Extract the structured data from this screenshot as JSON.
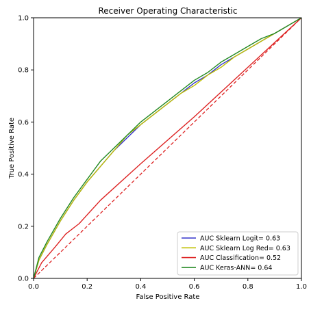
{
  "chart_data": {
    "type": "line",
    "title": "Receiver Operating Characteristic",
    "xlabel": "False Positive Rate",
    "ylabel": "True Positive Rate",
    "xlim": [
      0.0,
      1.0
    ],
    "ylim": [
      0.0,
      1.0
    ],
    "xticks": [
      "0.0",
      "0.2",
      "0.4",
      "0.6",
      "0.8",
      "1.0"
    ],
    "yticks": [
      "0.0",
      "0.2",
      "0.4",
      "0.6",
      "0.8",
      "1.0"
    ],
    "grid": false,
    "legend_position": "lower-right",
    "series": [
      {
        "name": "AUC Sklearn Logit= 0.63",
        "color": "#3333cc",
        "style": "solid",
        "x": [
          0.0,
          0.02,
          0.05,
          0.1,
          0.15,
          0.2,
          0.25,
          0.3,
          0.35,
          0.4,
          0.45,
          0.5,
          0.55,
          0.6,
          0.65,
          0.7,
          0.75,
          0.8,
          0.85,
          0.9,
          0.95,
          1.0
        ],
        "y": [
          0.0,
          0.07,
          0.13,
          0.22,
          0.3,
          0.37,
          0.43,
          0.49,
          0.54,
          0.59,
          0.63,
          0.67,
          0.71,
          0.75,
          0.78,
          0.82,
          0.85,
          0.88,
          0.91,
          0.94,
          0.97,
          1.0
        ]
      },
      {
        "name": "AUC Sklearn Log Red= 0.63",
        "color": "#bfbf00",
        "style": "solid",
        "x": [
          0.0,
          0.02,
          0.05,
          0.1,
          0.15,
          0.2,
          0.25,
          0.3,
          0.35,
          0.4,
          0.45,
          0.5,
          0.55,
          0.6,
          0.65,
          0.7,
          0.75,
          0.8,
          0.85,
          0.9,
          0.95,
          1.0
        ],
        "y": [
          0.0,
          0.07,
          0.13,
          0.22,
          0.3,
          0.37,
          0.43,
          0.49,
          0.55,
          0.59,
          0.63,
          0.67,
          0.71,
          0.74,
          0.78,
          0.81,
          0.85,
          0.88,
          0.91,
          0.94,
          0.97,
          1.0
        ]
      },
      {
        "name": "AUC Classification= 0.52",
        "color": "#dd2222",
        "style": "solid",
        "x": [
          0.0,
          0.03,
          0.08,
          0.12,
          0.17,
          0.25,
          0.4,
          0.6,
          0.8,
          1.0
        ],
        "y": [
          0.0,
          0.06,
          0.12,
          0.17,
          0.21,
          0.3,
          0.44,
          0.62,
          0.81,
          1.0
        ]
      },
      {
        "name": "AUC Keras-ANN= 0.64",
        "color": "#228822",
        "style": "solid",
        "x": [
          0.0,
          0.02,
          0.05,
          0.1,
          0.15,
          0.2,
          0.25,
          0.3,
          0.35,
          0.4,
          0.45,
          0.5,
          0.55,
          0.6,
          0.65,
          0.7,
          0.75,
          0.8,
          0.85,
          0.9,
          0.95,
          1.0
        ],
        "y": [
          0.0,
          0.08,
          0.14,
          0.23,
          0.31,
          0.38,
          0.45,
          0.5,
          0.55,
          0.6,
          0.64,
          0.68,
          0.72,
          0.76,
          0.79,
          0.83,
          0.86,
          0.89,
          0.92,
          0.94,
          0.97,
          1.0
        ]
      }
    ],
    "reference_line": {
      "color": "#dd2222",
      "style": "dashed",
      "x": [
        0.0,
        1.0
      ],
      "y": [
        0.0,
        1.0
      ]
    }
  }
}
